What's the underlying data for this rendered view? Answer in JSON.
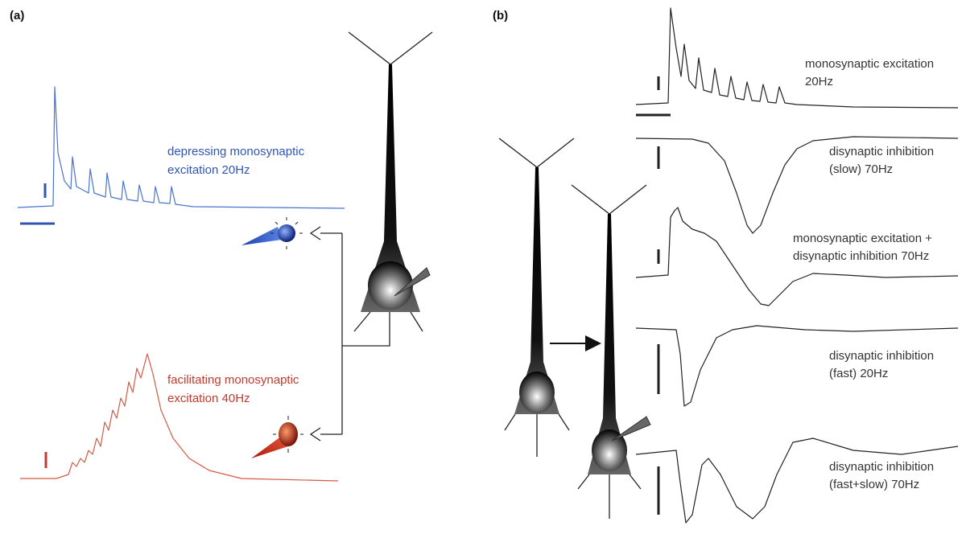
{
  "panels": [
    {
      "label": "(a)",
      "traces": [
        {
          "lines": [
            "depressing monosynaptic",
            "excitation 20Hz"
          ]
        },
        {
          "lines": [
            "facilitating monosynaptic",
            "excitation 40Hz"
          ]
        }
      ]
    },
    {
      "label": "(b)",
      "traces": [
        {
          "lines": [
            "monosynaptic excitation",
            "20Hz"
          ]
        },
        {
          "lines": [
            "disynaptic inhibition",
            "(slow) 70Hz"
          ]
        },
        {
          "lines": [
            "monosynaptic excitation +",
            "disynaptic inhibition 70Hz"
          ]
        },
        {
          "lines": [
            "disynaptic inhibition",
            "(fast) 20Hz"
          ]
        },
        {
          "lines": [
            "disynaptic inhibition",
            "(fast+slow) 70Hz"
          ]
        }
      ]
    }
  ]
}
